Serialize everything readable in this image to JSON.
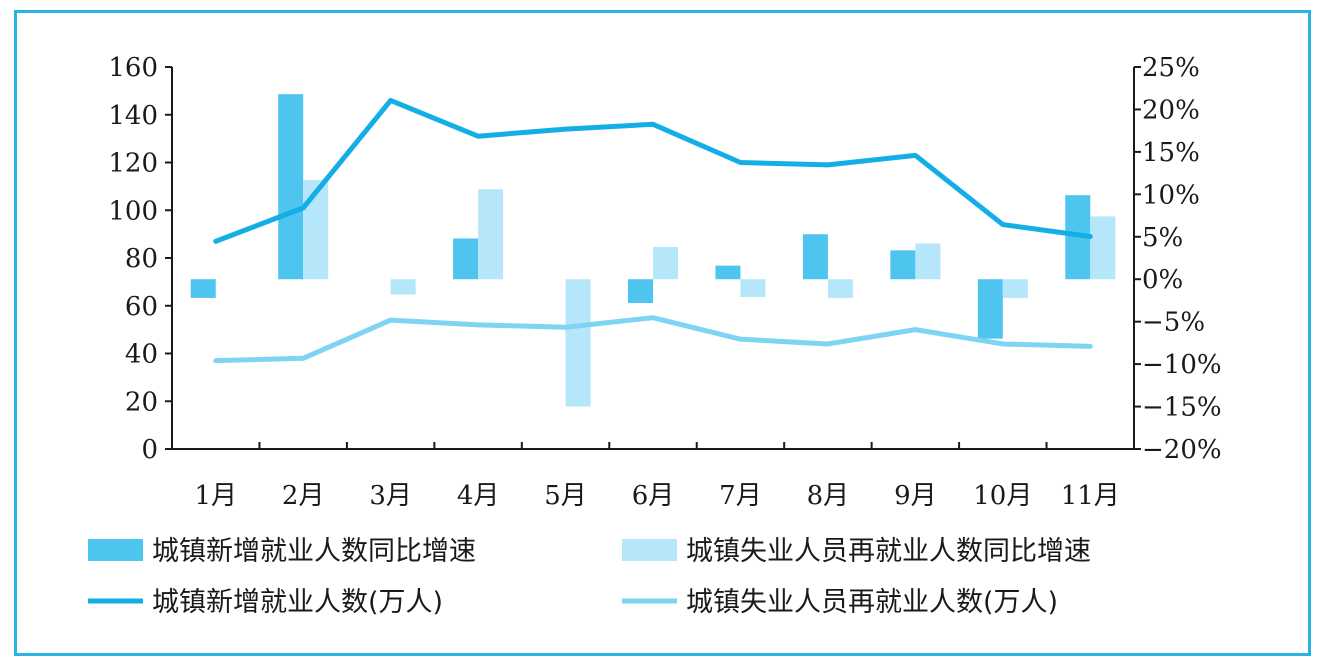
{
  "colors": {
    "frame": "#29b3e0",
    "bar_new": "#4ec5ef",
    "bar_reemp": "#b5e6fa",
    "line_new": "#14aee6",
    "line_reemp": "#7fd3f3",
    "axis": "#1a1a1a"
  },
  "chart_data": {
    "type": "bar",
    "categories": [
      "1月",
      "2月",
      "3月",
      "4月",
      "5月",
      "6月",
      "7月",
      "8月",
      "9月",
      "10月",
      "11月"
    ],
    "y_left": {
      "ylim": [
        0,
        160
      ],
      "ticks": [
        "0",
        "20",
        "40",
        "60",
        "80",
        "100",
        "120",
        "140",
        "160"
      ]
    },
    "y_right": {
      "ylim": [
        -20,
        25
      ],
      "ticks": [
        "−20%",
        "−15%",
        "−10%",
        "−5%",
        "0%",
        "5%",
        "10%",
        "15%",
        "20%",
        "25%"
      ]
    },
    "series": [
      {
        "name": "城镇新增就业人数同比增速",
        "type": "bar",
        "axis": "right",
        "unit": "%",
        "values": [
          -2.2,
          21.8,
          null,
          4.8,
          null,
          -2.8,
          1.6,
          5.3,
          3.4,
          -7.0,
          9.9
        ]
      },
      {
        "name": "城镇失业人员再就业人数同比增速",
        "type": "bar",
        "axis": "right",
        "unit": "%",
        "values": [
          null,
          11.7,
          -1.8,
          10.6,
          -15.0,
          3.8,
          -2.1,
          -2.2,
          4.2,
          -2.2,
          7.4
        ]
      },
      {
        "name": "城镇新增就业人数(万人)",
        "type": "line",
        "axis": "left",
        "values": [
          87,
          101,
          146,
          131,
          134,
          136,
          120,
          119,
          123,
          94,
          89
        ]
      },
      {
        "name": "城镇失业人员再就业人数(万人)",
        "type": "line",
        "axis": "left",
        "values": [
          37,
          38,
          54,
          52,
          51,
          55,
          46,
          44,
          50,
          44,
          43
        ]
      }
    ],
    "legend_position": "bottom"
  }
}
